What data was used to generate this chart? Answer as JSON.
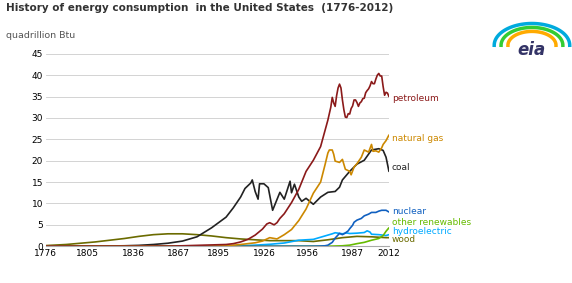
{
  "title": "History of energy consumption  in the United States  (1776-2012)",
  "ylabel": "quadrillion Btu",
  "ylim": [
    0,
    45
  ],
  "yticks": [
    0,
    5,
    10,
    15,
    20,
    25,
    30,
    35,
    40,
    45
  ],
  "xticks": [
    1776,
    1805,
    1836,
    1867,
    1895,
    1926,
    1956,
    1987,
    2012
  ],
  "xlim": [
    1776,
    2012
  ],
  "background_color": "#ffffff",
  "grid_color": "#cccccc",
  "series": {
    "wood": {
      "color": "#6b6b00",
      "label": "wood",
      "lw": 1.2,
      "data": [
        [
          1776,
          0.15
        ],
        [
          1790,
          0.4
        ],
        [
          1800,
          0.7
        ],
        [
          1810,
          1.0
        ],
        [
          1820,
          1.4
        ],
        [
          1830,
          1.8
        ],
        [
          1840,
          2.3
        ],
        [
          1850,
          2.7
        ],
        [
          1860,
          2.9
        ],
        [
          1870,
          2.9
        ],
        [
          1875,
          2.8
        ],
        [
          1880,
          2.7
        ],
        [
          1890,
          2.4
        ],
        [
          1900,
          2.0
        ],
        [
          1910,
          1.7
        ],
        [
          1920,
          1.5
        ],
        [
          1930,
          1.3
        ],
        [
          1940,
          1.3
        ],
        [
          1950,
          1.3
        ],
        [
          1960,
          1.1
        ],
        [
          1970,
          1.5
        ],
        [
          1980,
          2.0
        ],
        [
          1990,
          2.3
        ],
        [
          2000,
          2.2
        ],
        [
          2005,
          2.1
        ],
        [
          2010,
          2.0
        ],
        [
          2012,
          2.0
        ]
      ]
    },
    "hydroelectric": {
      "color": "#00aaff",
      "label": "hydroelectric",
      "lw": 1.2,
      "data": [
        [
          1776,
          0.0
        ],
        [
          1880,
          0.01
        ],
        [
          1890,
          0.02
        ],
        [
          1900,
          0.04
        ],
        [
          1910,
          0.1
        ],
        [
          1920,
          0.25
        ],
        [
          1930,
          0.45
        ],
        [
          1940,
          0.75
        ],
        [
          1950,
          1.4
        ],
        [
          1960,
          1.6
        ],
        [
          1965,
          2.1
        ],
        [
          1970,
          2.6
        ],
        [
          1973,
          2.9
        ],
        [
          1975,
          3.15
        ],
        [
          1980,
          2.9
        ],
        [
          1983,
          3.1
        ],
        [
          1985,
          2.97
        ],
        [
          1990,
          3.05
        ],
        [
          1995,
          3.2
        ],
        [
          1997,
          3.6
        ],
        [
          1999,
          3.3
        ],
        [
          2000,
          2.8
        ],
        [
          2005,
          2.7
        ],
        [
          2010,
          2.5
        ],
        [
          2012,
          2.7
        ]
      ]
    },
    "other_renewables": {
      "color": "#66bb00",
      "label": "other renewables",
      "lw": 1.2,
      "data": [
        [
          1776,
          0.0
        ],
        [
          1970,
          0.0
        ],
        [
          1975,
          0.05
        ],
        [
          1980,
          0.1
        ],
        [
          1985,
          0.25
        ],
        [
          1990,
          0.6
        ],
        [
          1995,
          0.9
        ],
        [
          2000,
          1.4
        ],
        [
          2005,
          1.8
        ],
        [
          2008,
          2.5
        ],
        [
          2010,
          3.5
        ],
        [
          2012,
          4.3
        ]
      ]
    },
    "nuclear": {
      "color": "#1060c0",
      "label": "nuclear",
      "lw": 1.2,
      "data": [
        [
          1776,
          0.0
        ],
        [
          1956,
          0.0
        ],
        [
          1958,
          0.01
        ],
        [
          1960,
          0.015
        ],
        [
          1963,
          0.03
        ],
        [
          1965,
          0.05
        ],
        [
          1968,
          0.1
        ],
        [
          1970,
          0.24
        ],
        [
          1973,
          0.9
        ],
        [
          1975,
          1.9
        ],
        [
          1978,
          3.0
        ],
        [
          1980,
          2.7
        ],
        [
          1982,
          3.1
        ],
        [
          1984,
          3.6
        ],
        [
          1985,
          4.1
        ],
        [
          1987,
          4.9
        ],
        [
          1988,
          5.6
        ],
        [
          1990,
          6.1
        ],
        [
          1993,
          6.5
        ],
        [
          1995,
          7.1
        ],
        [
          1998,
          7.5
        ],
        [
          2000,
          7.9
        ],
        [
          2003,
          7.9
        ],
        [
          2005,
          8.2
        ],
        [
          2007,
          8.4
        ],
        [
          2010,
          8.4
        ],
        [
          2012,
          8.0
        ]
      ]
    },
    "coal": {
      "color": "#222222",
      "label": "coal",
      "lw": 1.2,
      "data": [
        [
          1776,
          0.0
        ],
        [
          1800,
          0.01
        ],
        [
          1815,
          0.03
        ],
        [
          1830,
          0.1
        ],
        [
          1840,
          0.2
        ],
        [
          1850,
          0.4
        ],
        [
          1860,
          0.7
        ],
        [
          1870,
          1.2
        ],
        [
          1880,
          2.2
        ],
        [
          1890,
          4.3
        ],
        [
          1900,
          6.8
        ],
        [
          1905,
          9.0
        ],
        [
          1910,
          11.5
        ],
        [
          1913,
          13.5
        ],
        [
          1917,
          14.8
        ],
        [
          1918,
          15.5
        ],
        [
          1920,
          12.8
        ],
        [
          1922,
          11.0
        ],
        [
          1923,
          14.6
        ],
        [
          1926,
          14.6
        ],
        [
          1929,
          13.7
        ],
        [
          1932,
          8.4
        ],
        [
          1937,
          12.6
        ],
        [
          1940,
          11.0
        ],
        [
          1944,
          15.2
        ],
        [
          1945,
          12.5
        ],
        [
          1947,
          14.5
        ],
        [
          1948,
          13.5
        ],
        [
          1950,
          11.5
        ],
        [
          1952,
          10.5
        ],
        [
          1955,
          11.2
        ],
        [
          1960,
          9.8
        ],
        [
          1965,
          11.5
        ],
        [
          1970,
          12.6
        ],
        [
          1975,
          12.8
        ],
        [
          1978,
          13.8
        ],
        [
          1980,
          15.5
        ],
        [
          1985,
          17.5
        ],
        [
          1990,
          19.2
        ],
        [
          1995,
          20.1
        ],
        [
          2000,
          22.5
        ],
        [
          2005,
          22.8
        ],
        [
          2008,
          22.4
        ],
        [
          2010,
          20.8
        ],
        [
          2012,
          17.5
        ]
      ]
    },
    "natural_gas": {
      "color": "#cc8800",
      "label": "natural gas",
      "lw": 1.2,
      "data": [
        [
          1776,
          0.0
        ],
        [
          1890,
          0.05
        ],
        [
          1900,
          0.1
        ],
        [
          1910,
          0.4
        ],
        [
          1920,
          0.8
        ],
        [
          1925,
          1.2
        ],
        [
          1930,
          2.0
        ],
        [
          1935,
          1.7
        ],
        [
          1940,
          2.7
        ],
        [
          1945,
          3.9
        ],
        [
          1950,
          6.0
        ],
        [
          1955,
          8.7
        ],
        [
          1960,
          12.4
        ],
        [
          1965,
          15.0
        ],
        [
          1968,
          19.0
        ],
        [
          1970,
          21.8
        ],
        [
          1971,
          22.5
        ],
        [
          1972,
          22.5
        ],
        [
          1973,
          22.5
        ],
        [
          1974,
          21.5
        ],
        [
          1975,
          19.9
        ],
        [
          1978,
          19.6
        ],
        [
          1980,
          20.3
        ],
        [
          1982,
          18.0
        ],
        [
          1985,
          17.5
        ],
        [
          1986,
          16.7
        ],
        [
          1988,
          18.5
        ],
        [
          1990,
          19.3
        ],
        [
          1993,
          20.8
        ],
        [
          1995,
          22.5
        ],
        [
          1998,
          22.0
        ],
        [
          2000,
          23.8
        ],
        [
          2001,
          22.2
        ],
        [
          2003,
          22.3
        ],
        [
          2005,
          22.0
        ],
        [
          2007,
          23.0
        ],
        [
          2008,
          23.8
        ],
        [
          2010,
          24.7
        ],
        [
          2012,
          26.0
        ]
      ]
    },
    "petroleum": {
      "color": "#8b1a1a",
      "label": "petroleum",
      "lw": 1.2,
      "data": [
        [
          1776,
          0.0
        ],
        [
          1850,
          0.0
        ],
        [
          1860,
          0.02
        ],
        [
          1865,
          0.05
        ],
        [
          1870,
          0.1
        ],
        [
          1880,
          0.2
        ],
        [
          1890,
          0.3
        ],
        [
          1900,
          0.4
        ],
        [
          1905,
          0.6
        ],
        [
          1910,
          1.0
        ],
        [
          1915,
          1.6
        ],
        [
          1920,
          2.6
        ],
        [
          1925,
          4.0
        ],
        [
          1928,
          5.2
        ],
        [
          1930,
          5.5
        ],
        [
          1933,
          5.0
        ],
        [
          1935,
          5.5
        ],
        [
          1937,
          6.5
        ],
        [
          1940,
          7.6
        ],
        [
          1945,
          10.2
        ],
        [
          1950,
          13.3
        ],
        [
          1955,
          17.5
        ],
        [
          1960,
          20.1
        ],
        [
          1965,
          23.3
        ],
        [
          1970,
          29.5
        ],
        [
          1971,
          31.0
        ],
        [
          1972,
          32.5
        ],
        [
          1973,
          34.8
        ],
        [
          1974,
          33.5
        ],
        [
          1975,
          32.7
        ],
        [
          1976,
          35.2
        ],
        [
          1977,
          37.0
        ],
        [
          1978,
          37.9
        ],
        [
          1979,
          37.0
        ],
        [
          1980,
          34.2
        ],
        [
          1981,
          31.9
        ],
        [
          1982,
          30.2
        ],
        [
          1983,
          30.1
        ],
        [
          1984,
          31.0
        ],
        [
          1985,
          30.9
        ],
        [
          1986,
          32.2
        ],
        [
          1987,
          32.8
        ],
        [
          1988,
          34.2
        ],
        [
          1989,
          34.2
        ],
        [
          1990,
          33.6
        ],
        [
          1991,
          32.7
        ],
        [
          1992,
          33.5
        ],
        [
          1993,
          33.8
        ],
        [
          1994,
          34.5
        ],
        [
          1995,
          34.6
        ],
        [
          1996,
          35.9
        ],
        [
          1997,
          36.4
        ],
        [
          1998,
          36.8
        ],
        [
          1999,
          37.5
        ],
        [
          2000,
          38.5
        ],
        [
          2001,
          38.0
        ],
        [
          2002,
          38.0
        ],
        [
          2003,
          39.1
        ],
        [
          2004,
          40.0
        ],
        [
          2005,
          40.4
        ],
        [
          2006,
          39.8
        ],
        [
          2007,
          39.8
        ],
        [
          2008,
          37.3
        ],
        [
          2009,
          35.3
        ],
        [
          2010,
          36.0
        ],
        [
          2011,
          35.8
        ],
        [
          2012,
          35.0
        ]
      ]
    }
  },
  "annot": {
    "petroleum": {
      "y": 34.5,
      "text": "petroleum",
      "color": "#8b1a1a"
    },
    "natural_gas": {
      "y": 25.2,
      "text": "natural gas",
      "color": "#cc8800"
    },
    "coal": {
      "y": 18.5,
      "text": "coal",
      "color": "#222222"
    },
    "nuclear": {
      "y": 8.2,
      "text": "nuclear",
      "color": "#1060c0"
    },
    "other_renewables": {
      "y": 5.5,
      "text": "other renewables",
      "color": "#66bb00"
    },
    "hydroelectric": {
      "y": 3.5,
      "text": "hydroelectric",
      "color": "#00aaff"
    },
    "wood": {
      "y": 1.5,
      "text": "wood",
      "color": "#6b6b00"
    }
  }
}
